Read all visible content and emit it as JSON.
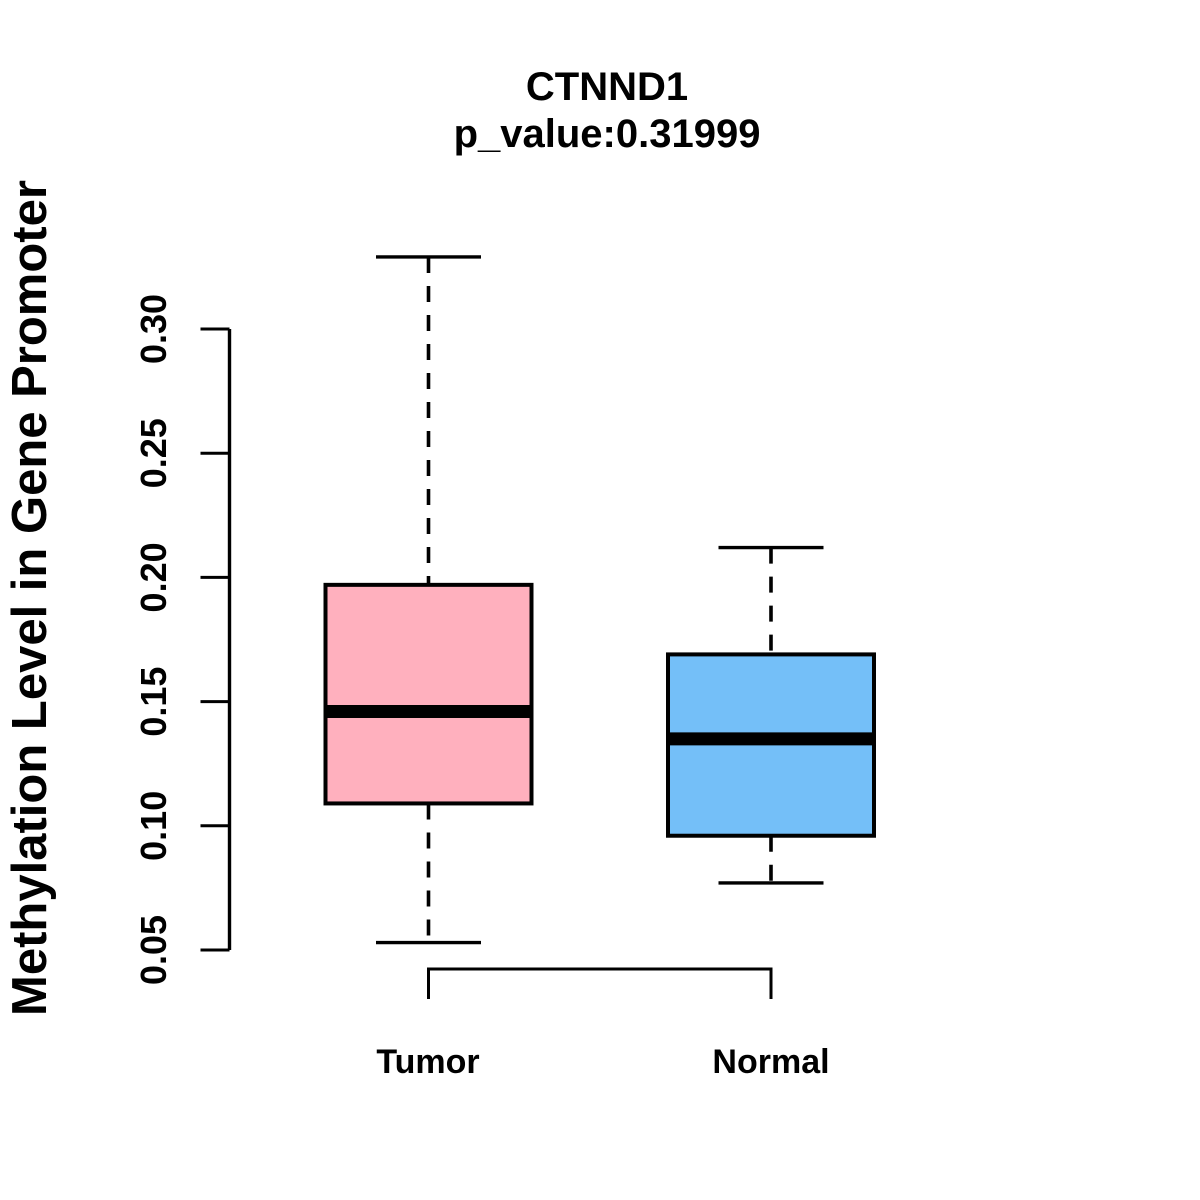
{
  "header": {
    "title": "CTNND1",
    "subtitle": "p_value:0.31999"
  },
  "y_axis": {
    "label": "Methylation Level in Gene Promoter",
    "tick_labels": [
      "0.05",
      "0.10",
      "0.15",
      "0.20",
      "0.25",
      "0.30"
    ]
  },
  "x_axis": {
    "categories": [
      "Tumor",
      "Normal"
    ]
  },
  "chart_data": {
    "type": "boxplot",
    "title": "CTNND1",
    "subtitle": "p_value:0.31999",
    "gene": "CTNND1",
    "p_value": 0.31999,
    "ylabel": "Methylation Level in Gene Promoter",
    "xlabel": "",
    "yticks": [
      0.05,
      0.1,
      0.15,
      0.2,
      0.25,
      0.3
    ],
    "ylim": [
      0.035,
      0.335
    ],
    "grid": false,
    "legend": false,
    "categories": [
      "Tumor",
      "Normal"
    ],
    "series": [
      {
        "name": "Tumor",
        "color": "#FFB0BE",
        "whisker_low": 0.053,
        "q1": 0.109,
        "median": 0.146,
        "q3": 0.197,
        "whisker_high": 0.329,
        "outliers": []
      },
      {
        "name": "Normal",
        "color": "#74BFF8",
        "whisker_low": 0.077,
        "q1": 0.096,
        "median": 0.135,
        "q3": 0.169,
        "whisker_high": 0.212,
        "outliers": []
      }
    ],
    "comparison_bracket": {
      "from": "Tumor",
      "to": "Normal"
    },
    "colors": {
      "stroke": "#000000",
      "background": "#FFFFFF"
    }
  }
}
